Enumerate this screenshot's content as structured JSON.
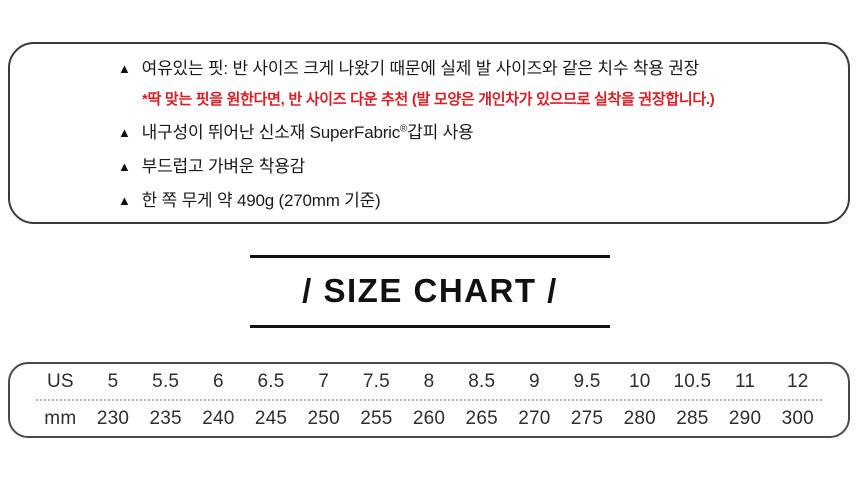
{
  "info_box": {
    "bullet_icon": "▲",
    "items": [
      {
        "text": "여유있는 핏: 반 사이즈 크게 나왔기 때문에 실제 발 사이즈와 같은 치수 착용 권장",
        "note": "*딱 맞는 핏을 원한다면, 반 사이즈 다운 추천 (발 모양은 개인차가 있으므로 실착을 권장합니다.)"
      },
      {
        "text_before_reg": "내구성이 뛰어난 신소재 SuperFabric",
        "reg_mark": "®",
        "text_after_reg": "갑피 사용"
      },
      {
        "text": "부드럽고 가벼운 착용감"
      },
      {
        "text": "한 쪽 무게 약 490g (270mm 기준)"
      }
    ],
    "note_color": "#d91f26"
  },
  "size_chart": {
    "title": "/ SIZE CHART /"
  },
  "size_table": {
    "row_us": [
      "US",
      "5",
      "5.5",
      "6",
      "6.5",
      "7",
      "7.5",
      "8",
      "8.5",
      "9",
      "9.5",
      "10",
      "10.5",
      "11",
      "12"
    ],
    "row_mm": [
      "mm",
      "230",
      "235",
      "240",
      "245",
      "250",
      "255",
      "260",
      "265",
      "270",
      "275",
      "280",
      "285",
      "290",
      "300"
    ]
  },
  "chart_data": {
    "type": "table",
    "title": "/ SIZE CHART /",
    "categories": [
      "US",
      "mm"
    ],
    "series": [
      {
        "name": "US",
        "values": [
          5,
          5.5,
          6,
          6.5,
          7,
          7.5,
          8,
          8.5,
          9,
          9.5,
          10,
          10.5,
          11,
          12
        ]
      },
      {
        "name": "mm",
        "values": [
          230,
          235,
          240,
          245,
          250,
          255,
          260,
          265,
          270,
          275,
          280,
          285,
          290,
          300
        ]
      }
    ]
  }
}
